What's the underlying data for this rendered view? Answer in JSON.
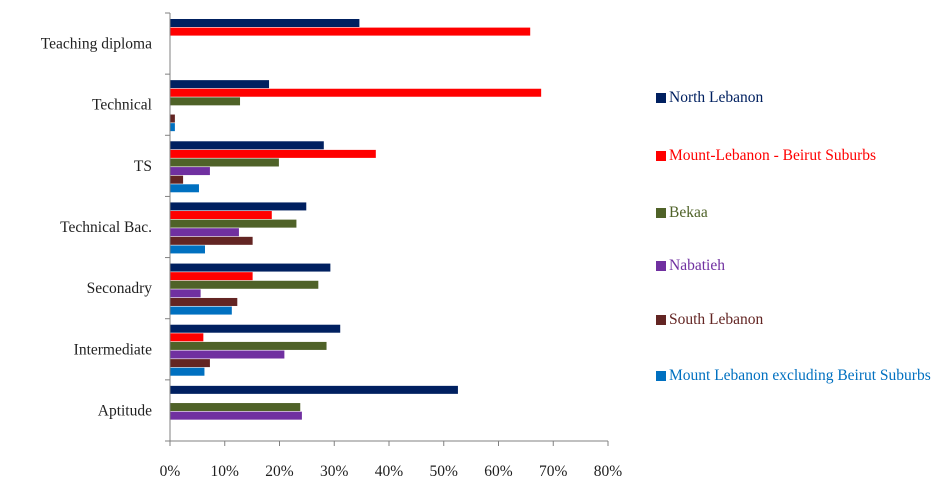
{
  "chart_data": {
    "type": "bar",
    "orientation": "horizontal",
    "title": "",
    "xlabel": "",
    "ylabel": "",
    "categories": [
      "Teaching diploma",
      "Technical",
      "TS",
      "Technical Bac.",
      "Seconadry",
      "Intermediate",
      "Aptitude"
    ],
    "series": [
      {
        "name": "North Lebanon",
        "color": "#002060",
        "values": [
          34.5,
          18,
          28,
          24.8,
          29.2,
          31,
          52.5
        ]
      },
      {
        "name": "Mount-Lebanon - Beirut Suburbs",
        "color": "#ff0000",
        "values": [
          65.7,
          67.7,
          37.5,
          18.5,
          15,
          6,
          0
        ]
      },
      {
        "name": "Bekaa",
        "color": "#4f6228",
        "values": [
          0,
          12.7,
          19.8,
          23,
          27,
          28.5,
          23.7
        ]
      },
      {
        "name": "Nabatieh",
        "color": "#7030a0",
        "values": [
          0,
          0,
          7.2,
          12.5,
          5.5,
          20.8,
          24
        ]
      },
      {
        "name": "South Lebanon",
        "color": "#632523",
        "values": [
          0,
          0.8,
          2.3,
          15,
          12.2,
          7.2,
          0
        ]
      },
      {
        "name": "Mount Lebanon excluding Beirut Suburbs",
        "color": "#0070c0",
        "values": [
          0,
          0.8,
          5.2,
          6.3,
          11.2,
          6.2,
          0
        ]
      }
    ],
    "xlim": [
      0,
      80
    ],
    "x_ticks": [
      "0%",
      "10%",
      "20%",
      "30%",
      "40%",
      "50%",
      "60%",
      "70%",
      "80%"
    ],
    "grid": false,
    "legend_position": "right"
  }
}
